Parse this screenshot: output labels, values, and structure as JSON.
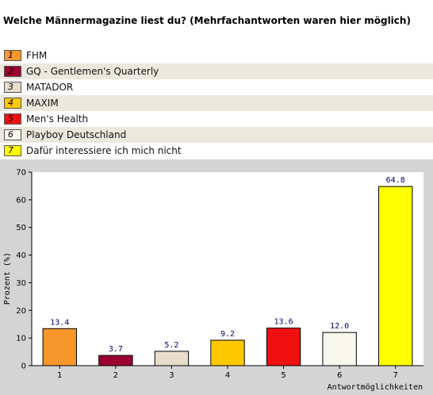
{
  "title": "Welche Männermagazine liest du? (Mehrfachantworten waren hier möglich)",
  "legend": [
    {
      "num": "1",
      "label": "FHM",
      "color": "#f6962b"
    },
    {
      "num": "2",
      "label": "GQ - Gentlemen's Quarterly",
      "color": "#9b0030"
    },
    {
      "num": "3",
      "label": "MATADOR",
      "color": "#e8dccb"
    },
    {
      "num": "4",
      "label": "MAXIM",
      "color": "#fdc701"
    },
    {
      "num": "5",
      "label": "Men's Health",
      "color": "#f01010"
    },
    {
      "num": "6",
      "label": "Playboy Deutschland",
      "color": "#f9f8ef"
    },
    {
      "num": "7",
      "label": "Dafür interessiere ich mich nicht",
      "color": "#ffff00"
    }
  ],
  "chart_data": {
    "type": "bar",
    "categories": [
      "1",
      "2",
      "3",
      "4",
      "5",
      "6",
      "7"
    ],
    "values": [
      13.4,
      3.7,
      5.2,
      9.2,
      13.6,
      12.0,
      64.8
    ],
    "value_labels": [
      "13.4",
      "3.7",
      "5.2",
      "9.2",
      "13.6",
      "12.0",
      "64.8"
    ],
    "colors": [
      "#f6962b",
      "#9b0030",
      "#e8dccb",
      "#fdc701",
      "#f01010",
      "#f9f8ef",
      "#ffff00"
    ],
    "xlabel": "Antwortmöglichkeiten",
    "ylabel": "Prozent (%)",
    "ylim": [
      0,
      70
    ],
    "yticks": [
      0,
      10,
      20,
      30,
      40,
      50,
      60,
      70
    ],
    "grid": false
  }
}
